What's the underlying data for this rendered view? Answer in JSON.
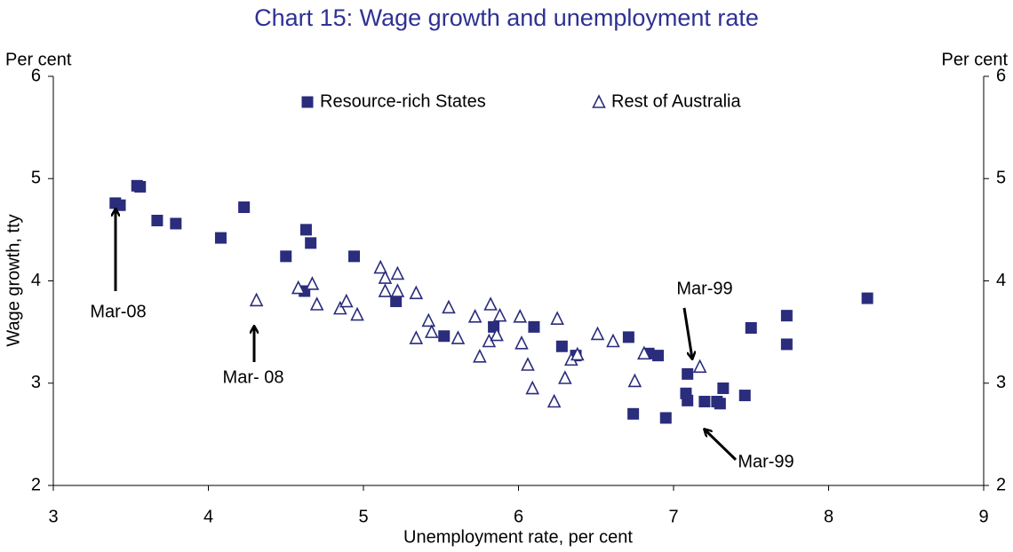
{
  "chart_data": {
    "type": "scatter",
    "title": "Chart 15: Wage growth and unemployment rate",
    "x_label": "Unemployment rate, per cent",
    "y_label": "Wage growth, tty",
    "y_unit": "Per cent",
    "y2_unit": "Per cent",
    "xlim": [
      3,
      9
    ],
    "xticks": [
      3,
      4,
      5,
      6,
      7,
      8,
      9
    ],
    "ylim": [
      2,
      6
    ],
    "yticks": [
      2,
      3,
      4,
      5,
      6
    ],
    "y2lim": [
      2,
      6
    ],
    "y2ticks": [
      2,
      3,
      4,
      5,
      6
    ],
    "grid": false,
    "legend": "top",
    "series": [
      {
        "name": "Resource-rich States",
        "color": "#2a2c7c",
        "marker": "square",
        "x": [
          3.4,
          3.43,
          3.54,
          3.56,
          3.67,
          3.79,
          4.08,
          4.23,
          4.5,
          4.63,
          4.66,
          4.62,
          4.94,
          5.21,
          5.52,
          5.84,
          6.1,
          6.28,
          6.37,
          6.71,
          6.74,
          6.84,
          6.9,
          6.95,
          7.09,
          7.08,
          7.09,
          7.2,
          7.28,
          7.3,
          7.32,
          7.46,
          7.5,
          7.73,
          7.73,
          8.25
        ],
        "values": [
          4.76,
          4.74,
          4.93,
          4.92,
          4.59,
          4.56,
          4.42,
          4.72,
          4.24,
          4.5,
          4.37,
          3.9,
          4.24,
          3.8,
          3.46,
          3.55,
          3.55,
          3.36,
          3.27,
          3.45,
          2.7,
          3.29,
          3.27,
          2.66,
          3.09,
          2.9,
          2.83,
          2.82,
          2.82,
          2.8,
          2.95,
          2.88,
          3.54,
          3.66,
          3.38,
          3.83
        ]
      },
      {
        "name": "Rest of Australia",
        "color": "#2a2c7c",
        "marker": "triangle",
        "x": [
          4.31,
          4.58,
          4.67,
          4.7,
          4.85,
          4.89,
          4.96,
          5.11,
          5.14,
          5.14,
          5.22,
          5.22,
          5.34,
          5.34,
          5.42,
          5.44,
          5.55,
          5.61,
          5.72,
          5.75,
          5.82,
          5.81,
          5.86,
          5.88,
          6.01,
          6.02,
          6.06,
          6.09,
          6.25,
          6.23,
          6.3,
          6.34,
          6.38,
          6.51,
          6.61,
          6.75,
          6.81,
          7.17
        ],
        "values": [
          3.81,
          3.93,
          3.97,
          3.77,
          3.73,
          3.8,
          3.67,
          4.13,
          4.03,
          3.9,
          3.9,
          4.07,
          3.88,
          3.44,
          3.61,
          3.5,
          3.74,
          3.44,
          3.65,
          3.26,
          3.77,
          3.41,
          3.47,
          3.66,
          3.65,
          3.39,
          3.18,
          2.95,
          3.63,
          2.82,
          3.05,
          3.23,
          3.28,
          3.48,
          3.41,
          3.02,
          3.29,
          3.16
        ]
      }
    ],
    "annotations": [
      "Mar-08",
      "Mar- 08",
      "Mar-99",
      "Mar-99"
    ]
  }
}
